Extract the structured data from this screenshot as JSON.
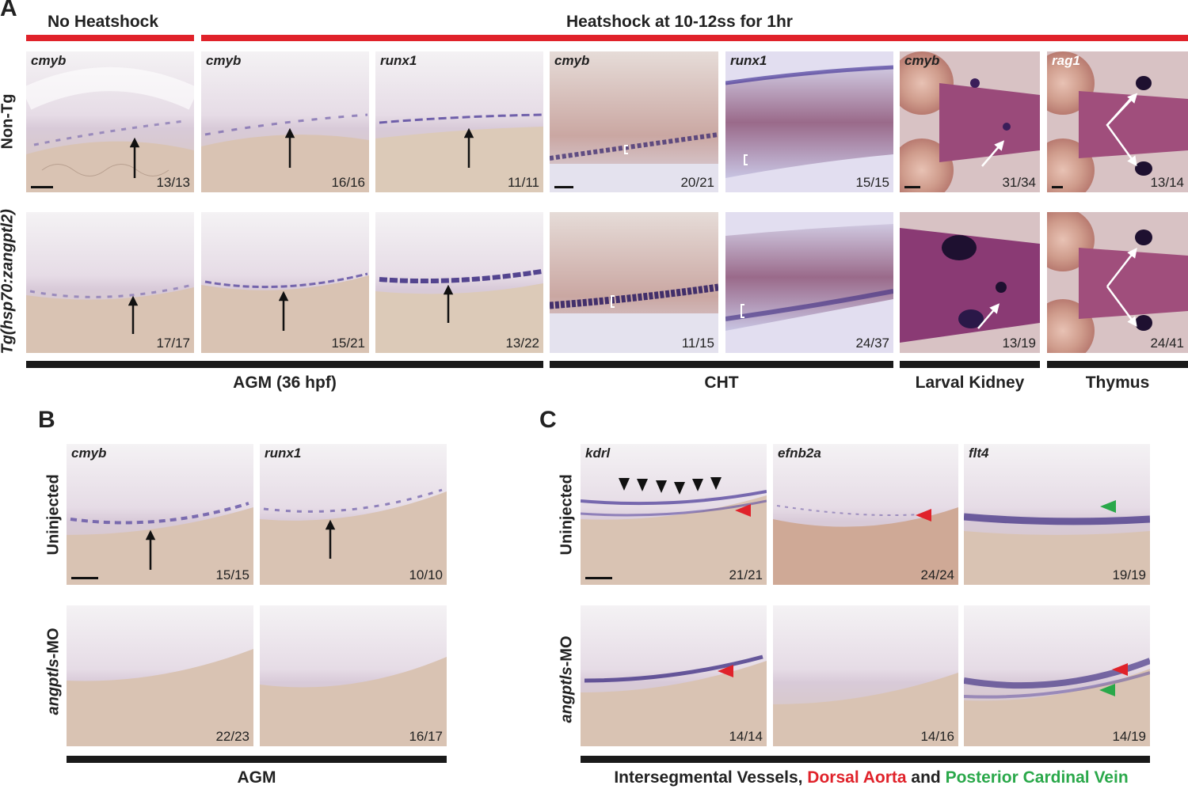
{
  "panel_letters": {
    "a": "A",
    "b": "B",
    "c": "C"
  },
  "headers": {
    "no_heatshock": "No Heatshock",
    "heatshock": "Heatshock at 10-12ss for 1hr"
  },
  "row_labels": {
    "a_top": "Non-Tg",
    "a_bottom": "Tg(hsp70:zangptl2)",
    "b_top": "Uninjected",
    "b_bottom_italic": "angptls",
    "b_bottom_rest": "-MO",
    "c_top": "Uninjected",
    "c_bottom_italic": "angptls",
    "c_bottom_rest": "-MO"
  },
  "section_labels": {
    "agm36": "AGM (36 hpf)",
    "cht": "CHT",
    "kidney": "Larval Kidney",
    "thymus": "Thymus",
    "agm": "AGM",
    "vessels_1": "Intersegmental Vessels, ",
    "vessels_2": "Dorsal Aorta",
    "vessels_3": " and ",
    "vessels_4": "Posterior Cardinal Vein"
  },
  "panels_a_top": [
    {
      "gene": "cmyb",
      "score": "13/13"
    },
    {
      "gene": "cmyb",
      "score": "16/16"
    },
    {
      "gene": "runx1",
      "score": "11/11"
    },
    {
      "gene": "cmyb",
      "score": "20/21"
    },
    {
      "gene": "runx1",
      "score": "15/15"
    },
    {
      "gene": "cmyb",
      "score": "31/34"
    },
    {
      "gene": "rag1",
      "score": "13/14"
    }
  ],
  "panels_a_bottom": [
    {
      "score": "17/17"
    },
    {
      "score": "15/21"
    },
    {
      "score": "13/22"
    },
    {
      "score": "11/15"
    },
    {
      "score": "24/37"
    },
    {
      "score": "13/19"
    },
    {
      "score": "24/41"
    }
  ],
  "panels_b": [
    {
      "gene": "cmyb",
      "score": "15/15"
    },
    {
      "gene": "runx1",
      "score": "10/10"
    },
    {
      "score": "22/23"
    },
    {
      "score": "16/17"
    }
  ],
  "panels_c": [
    {
      "gene": "kdrl",
      "score": "21/21"
    },
    {
      "gene": "efnb2a",
      "score": "24/24"
    },
    {
      "gene": "flt4",
      "score": "19/19"
    },
    {
      "score": "14/14"
    },
    {
      "score": "14/16"
    },
    {
      "score": "14/19"
    }
  ],
  "colors": {
    "red": "#e0222a",
    "green": "#2aa84a",
    "stain": "#4a3a9a"
  }
}
